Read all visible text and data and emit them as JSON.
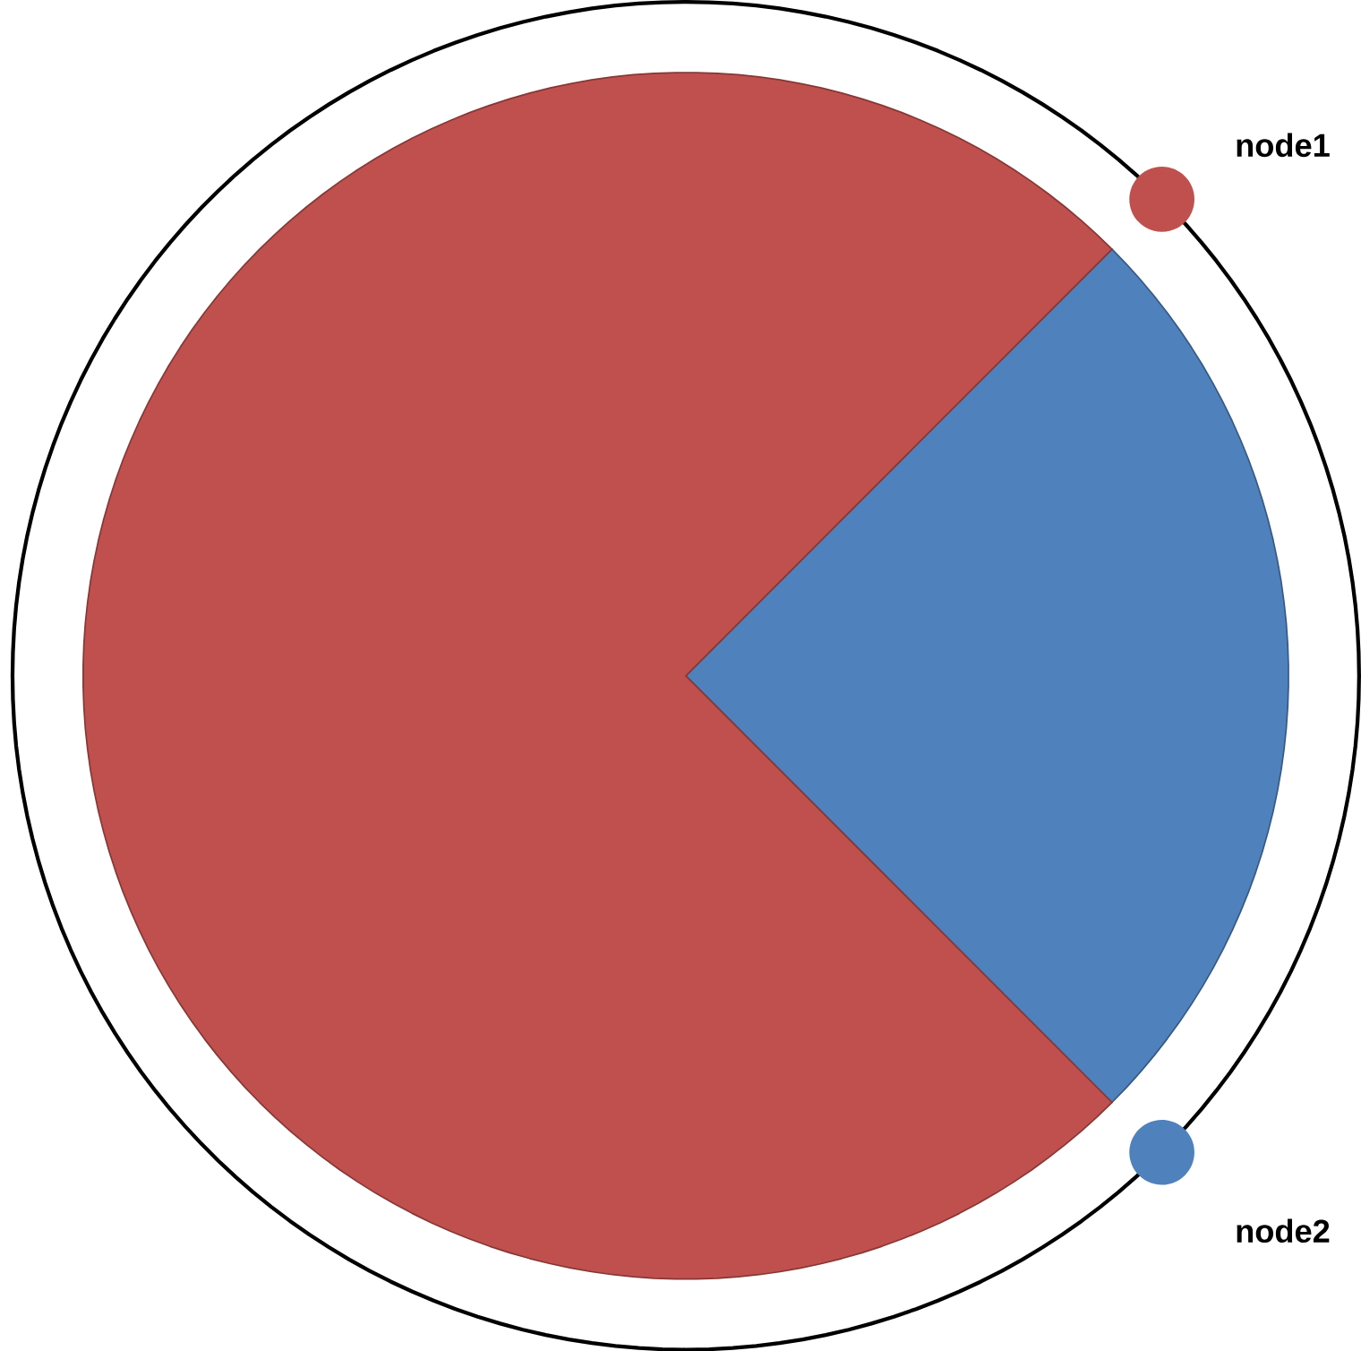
{
  "chart_data": {
    "type": "pie",
    "categories": [
      "node1",
      "node2"
    ],
    "values": [
      75,
      25
    ],
    "colors": [
      "#c0504d",
      "#4f81bd"
    ]
  }
}
